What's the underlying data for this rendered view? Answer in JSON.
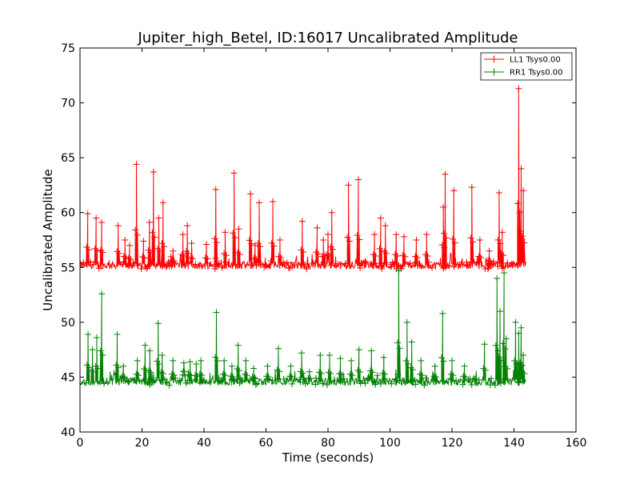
{
  "chart_data": {
    "type": "line",
    "title": "Jupiter_high_Betel, ID:16017 Uncalibrated Amplitude",
    "xlabel": "Time (seconds)",
    "ylabel": "Uncalibrated Amplitude",
    "xlim": [
      0,
      160
    ],
    "ylim": [
      40,
      75
    ],
    "x_ticks": [
      0,
      20,
      40,
      60,
      80,
      100,
      120,
      140,
      160
    ],
    "y_ticks": [
      40,
      45,
      50,
      55,
      60,
      65,
      70,
      75
    ],
    "x_tick_labels": [
      "0",
      "20",
      "40",
      "60",
      "80",
      "100",
      "120",
      "140",
      "160"
    ],
    "y_tick_labels": [
      "40",
      "45",
      "50",
      "55",
      "60",
      "65",
      "70",
      "75"
    ],
    "grid": false,
    "legend_position": "top-right",
    "marker": "plus",
    "series": [
      {
        "name": "LL1 Tsys0.00",
        "color": "#ff0000",
        "baseline": 55.2,
        "x_range": [
          0,
          144
        ],
        "peaks": [
          {
            "x": 2.5,
            "y": 59.9
          },
          {
            "x": 5.2,
            "y": 59.5
          },
          {
            "x": 7.0,
            "y": 59.1
          },
          {
            "x": 12.3,
            "y": 58.8
          },
          {
            "x": 14.5,
            "y": 57.5
          },
          {
            "x": 16.0,
            "y": 57.0
          },
          {
            "x": 18.2,
            "y": 64.4
          },
          {
            "x": 20.5,
            "y": 57.4
          },
          {
            "x": 22.4,
            "y": 59.1
          },
          {
            "x": 23.7,
            "y": 63.7
          },
          {
            "x": 25.4,
            "y": 59.5
          },
          {
            "x": 26.8,
            "y": 60.9
          },
          {
            "x": 30.0,
            "y": 56.5
          },
          {
            "x": 33.2,
            "y": 58.0
          },
          {
            "x": 34.6,
            "y": 58.8
          },
          {
            "x": 36.0,
            "y": 57.2
          },
          {
            "x": 40.8,
            "y": 57.1
          },
          {
            "x": 43.8,
            "y": 62.1
          },
          {
            "x": 46.8,
            "y": 58.2
          },
          {
            "x": 49.7,
            "y": 63.6
          },
          {
            "x": 51.2,
            "y": 58.5
          },
          {
            "x": 55.0,
            "y": 61.7
          },
          {
            "x": 56.5,
            "y": 57.0
          },
          {
            "x": 57.8,
            "y": 60.9
          },
          {
            "x": 62.2,
            "y": 61.0
          },
          {
            "x": 64.5,
            "y": 57.5
          },
          {
            "x": 71.7,
            "y": 59.2
          },
          {
            "x": 76.5,
            "y": 58.6
          },
          {
            "x": 78.5,
            "y": 57.5
          },
          {
            "x": 80.0,
            "y": 58.0
          },
          {
            "x": 81.2,
            "y": 60.0
          },
          {
            "x": 86.6,
            "y": 62.5
          },
          {
            "x": 89.8,
            "y": 63.0
          },
          {
            "x": 95.0,
            "y": 58.0
          },
          {
            "x": 97.0,
            "y": 59.5
          },
          {
            "x": 98.5,
            "y": 58.8
          },
          {
            "x": 102.0,
            "y": 58.0
          },
          {
            "x": 104.5,
            "y": 57.8
          },
          {
            "x": 108.5,
            "y": 57.5
          },
          {
            "x": 111.8,
            "y": 58.0
          },
          {
            "x": 117.2,
            "y": 60.5
          },
          {
            "x": 117.8,
            "y": 63.5
          },
          {
            "x": 120.6,
            "y": 62.0
          },
          {
            "x": 126.4,
            "y": 62.3
          },
          {
            "x": 129.0,
            "y": 57.5
          },
          {
            "x": 132.0,
            "y": 56.5
          },
          {
            "x": 135.2,
            "y": 61.8
          },
          {
            "x": 136.2,
            "y": 58.2
          },
          {
            "x": 141.5,
            "y": 71.3
          },
          {
            "x": 142.3,
            "y": 64.0
          },
          {
            "x": 143.0,
            "y": 62.0
          }
        ]
      },
      {
        "name": "RR1 Tsys0.00",
        "color": "#008000",
        "baseline": 44.6,
        "x_range": [
          0,
          144
        ],
        "peaks": [
          {
            "x": 2.6,
            "y": 48.9
          },
          {
            "x": 4.0,
            "y": 47.5
          },
          {
            "x": 5.4,
            "y": 48.6
          },
          {
            "x": 7.0,
            "y": 52.6
          },
          {
            "x": 12.0,
            "y": 48.9
          },
          {
            "x": 14.0,
            "y": 46.0
          },
          {
            "x": 18.5,
            "y": 46.5
          },
          {
            "x": 21.0,
            "y": 47.9
          },
          {
            "x": 22.5,
            "y": 47.4
          },
          {
            "x": 25.2,
            "y": 49.9
          },
          {
            "x": 26.5,
            "y": 47.0
          },
          {
            "x": 30.0,
            "y": 46.5
          },
          {
            "x": 33.5,
            "y": 46.3
          },
          {
            "x": 35.5,
            "y": 46.4
          },
          {
            "x": 37.5,
            "y": 46.2
          },
          {
            "x": 39.0,
            "y": 46.5
          },
          {
            "x": 44.0,
            "y": 50.9
          },
          {
            "x": 46.5,
            "y": 46.5
          },
          {
            "x": 49.0,
            "y": 46.0
          },
          {
            "x": 51.0,
            "y": 47.9
          },
          {
            "x": 53.5,
            "y": 46.5
          },
          {
            "x": 56.0,
            "y": 45.8
          },
          {
            "x": 60.5,
            "y": 46.0
          },
          {
            "x": 64.0,
            "y": 47.6
          },
          {
            "x": 68.0,
            "y": 46.0
          },
          {
            "x": 71.5,
            "y": 47.2
          },
          {
            "x": 74.0,
            "y": 45.5
          },
          {
            "x": 77.5,
            "y": 47.0
          },
          {
            "x": 80.5,
            "y": 47.0
          },
          {
            "x": 84.0,
            "y": 46.7
          },
          {
            "x": 87.5,
            "y": 46.5
          },
          {
            "x": 90.0,
            "y": 47.5
          },
          {
            "x": 94.0,
            "y": 47.4
          },
          {
            "x": 98.0,
            "y": 46.8
          },
          {
            "x": 102.8,
            "y": 54.7
          },
          {
            "x": 105.5,
            "y": 50.0
          },
          {
            "x": 107.0,
            "y": 48.2
          },
          {
            "x": 110.0,
            "y": 46.5
          },
          {
            "x": 114.5,
            "y": 46.0
          },
          {
            "x": 117.0,
            "y": 50.8
          },
          {
            "x": 120.0,
            "y": 46.5
          },
          {
            "x": 124.0,
            "y": 46.0
          },
          {
            "x": 130.5,
            "y": 48.0
          },
          {
            "x": 134.5,
            "y": 54.0
          },
          {
            "x": 135.5,
            "y": 51.0
          },
          {
            "x": 136.8,
            "y": 54.5
          },
          {
            "x": 137.5,
            "y": 48.5
          },
          {
            "x": 140.5,
            "y": 50.0
          },
          {
            "x": 141.5,
            "y": 49.0
          },
          {
            "x": 142.3,
            "y": 49.5
          },
          {
            "x": 143.0,
            "y": 47.0
          }
        ]
      }
    ]
  }
}
